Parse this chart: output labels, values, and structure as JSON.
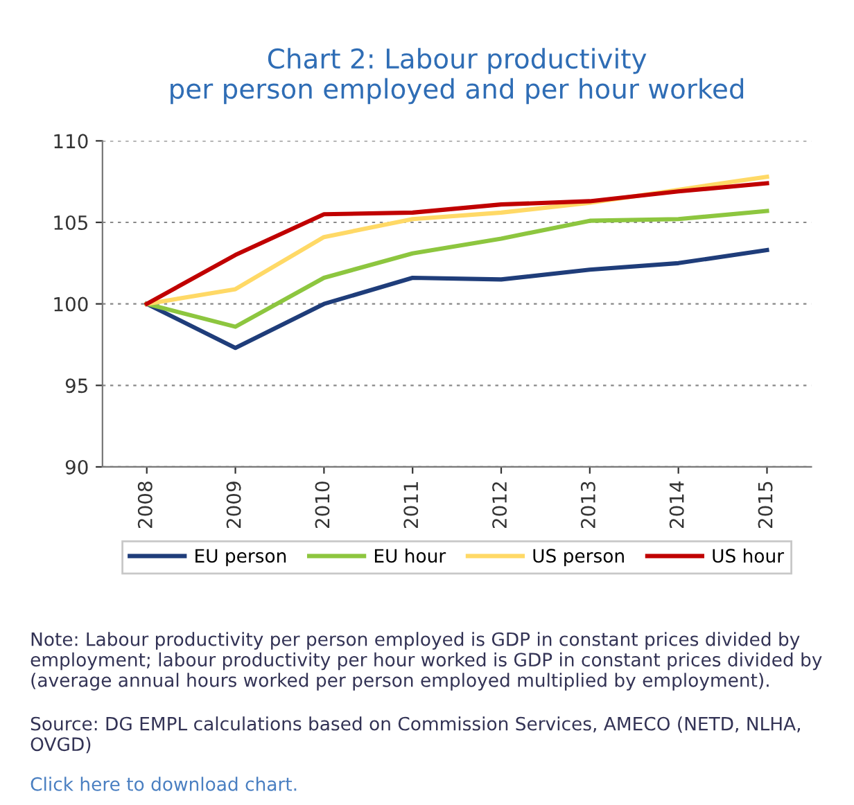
{
  "chart_data": {
    "type": "line",
    "title": "Chart 2: Labour productivity\nper person employed and per hour worked",
    "categories": [
      "2008",
      "2009",
      "2010",
      "2011",
      "2012",
      "2013",
      "2014",
      "2015"
    ],
    "series": [
      {
        "name": "EU person",
        "color": "#1f3d7a",
        "values": [
          100,
          97.3,
          100.0,
          101.6,
          101.5,
          102.1,
          102.5,
          103.3
        ]
      },
      {
        "name": "EU hour",
        "color": "#8dc63f",
        "values": [
          100,
          98.6,
          101.6,
          103.1,
          104.0,
          105.1,
          105.2,
          105.7
        ]
      },
      {
        "name": "US person",
        "color": "#ffd966",
        "values": [
          100,
          100.9,
          104.1,
          105.2,
          105.6,
          106.2,
          107.0,
          107.8
        ]
      },
      {
        "name": "US hour",
        "color": "#c00000",
        "values": [
          100,
          103.0,
          105.5,
          105.6,
          106.1,
          106.3,
          106.9,
          107.4
        ]
      }
    ],
    "ylim": [
      90,
      110
    ],
    "yticks": [
      90,
      95,
      100,
      105,
      110
    ],
    "grid": "y",
    "legend": "bottom",
    "marker": "none",
    "line_style": "solid",
    "annotations": [
      "Note: Labour productivity per person employed is GDP in constant prices divided by employment; labour productivity per hour worked is GDP in constant prices divided by (average annual hours worked per person employed multiplied by employment).",
      "Source: DG EMPL calculations based on Commission Services, AMECO (NETD, NLHA, OVGD)",
      "Click here to download chart."
    ]
  }
}
